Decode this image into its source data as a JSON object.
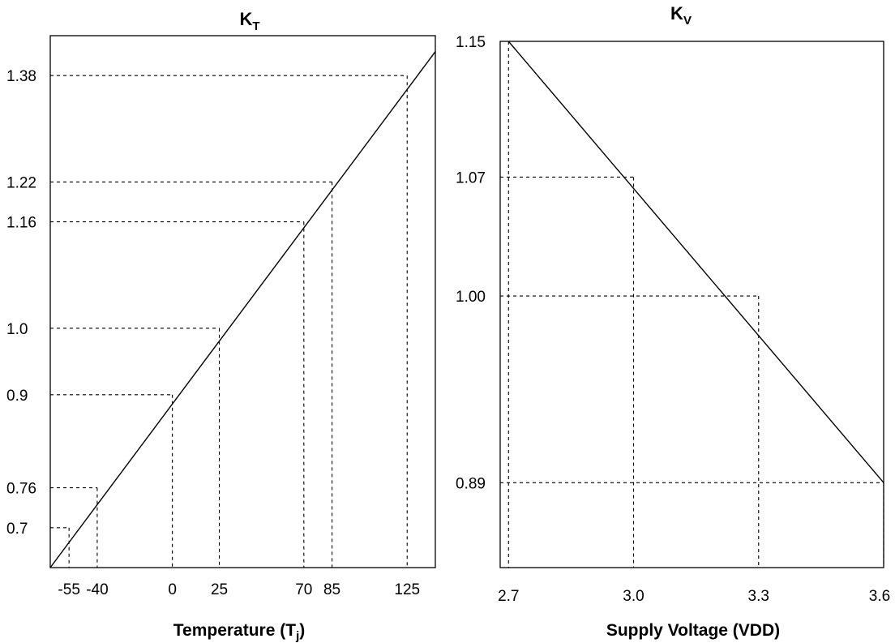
{
  "chart_data": [
    {
      "type": "line",
      "title_main": "K",
      "title_sub": "T",
      "xlabel_main": "Temperature (T",
      "xlabel_sub": "j",
      "xlabel_tail": ")",
      "ylabel": "",
      "xlim": [
        -65,
        140
      ],
      "ylim": [
        0.64,
        1.44
      ],
      "series": [
        {
          "x": [
            -65,
            140
          ],
          "y": [
            0.64,
            1.416
          ]
        }
      ],
      "guides": [
        {
          "x": -55,
          "y": 0.7
        },
        {
          "x": -40,
          "y": 0.76
        },
        {
          "x": 0,
          "y": 0.9
        },
        {
          "x": 25,
          "y": 1.0
        },
        {
          "x": 70,
          "y": 1.16
        },
        {
          "x": 85,
          "y": 1.22
        },
        {
          "x": 125,
          "y": 1.38
        }
      ],
      "xticks": [
        "-55",
        "-40",
        "0",
        "25",
        "70",
        "85",
        "125"
      ],
      "yticks": [
        "0.7",
        "0.76",
        "0.9",
        "1.0",
        "1.16",
        "1.22",
        "1.38"
      ],
      "grid": false
    },
    {
      "type": "line",
      "title_main": "K",
      "title_sub": "V",
      "xlabel_main": "Supply Voltage (VDD)",
      "xlabel_sub": "",
      "xlabel_tail": "",
      "ylabel": "",
      "xlim": [
        2.68,
        3.6
      ],
      "ylim": [
        0.84,
        1.15
      ],
      "series": [
        {
          "x": [
            2.7,
            3.6
          ],
          "y": [
            1.15,
            0.89
          ]
        }
      ],
      "guides": [
        {
          "x": 2.7,
          "y": 1.15
        },
        {
          "x": 3.0,
          "y": 1.07
        },
        {
          "x": 3.3,
          "y": 1.0
        },
        {
          "x": 3.6,
          "y": 0.89
        }
      ],
      "xticks": [
        "2.7",
        "3.0",
        "3.3",
        "3.6"
      ],
      "yticks": [
        "1.15",
        "1.07",
        "1.00",
        "0.89"
      ],
      "grid": false
    }
  ]
}
